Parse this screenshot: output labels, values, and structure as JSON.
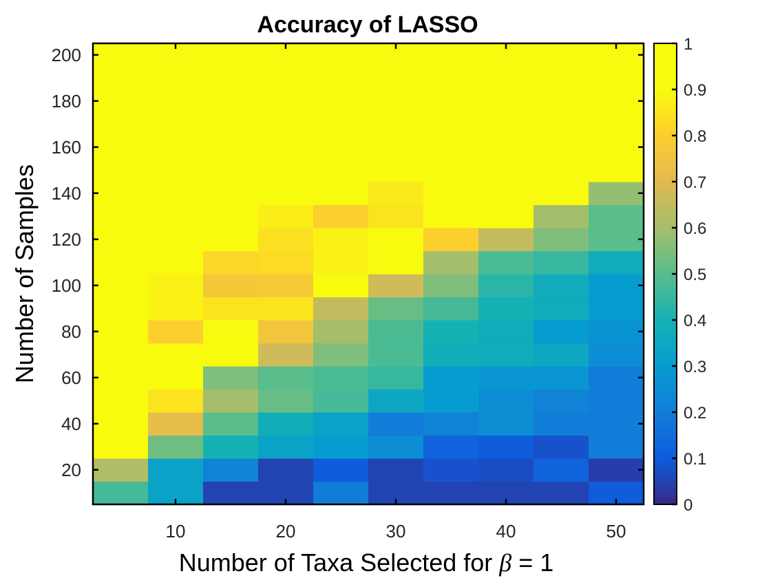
{
  "chart_data": {
    "type": "heatmap",
    "title": "Accuracy of LASSO",
    "xlabel_prefix": "Number of Taxa Selected for ",
    "xlabel_symbol": "β",
    "xlabel_suffix": " = 1",
    "ylabel": "Number of Samples",
    "x": [
      5,
      10,
      15,
      20,
      25,
      30,
      35,
      40,
      45,
      50
    ],
    "y": [
      10,
      20,
      30,
      40,
      50,
      60,
      70,
      80,
      90,
      100,
      110,
      120,
      130,
      140,
      150,
      160,
      170,
      180,
      190,
      200
    ],
    "xlim": [
      2.5,
      52.5
    ],
    "ylim": [
      5,
      205
    ],
    "xticks": [
      10,
      20,
      30,
      40,
      50
    ],
    "yticks": [
      20,
      40,
      60,
      80,
      100,
      120,
      140,
      160,
      180,
      200
    ],
    "colorbar": {
      "ticks": [
        0,
        0.1,
        0.2,
        0.3,
        0.4,
        0.5,
        0.6,
        0.7,
        0.8,
        0.9,
        1
      ],
      "clim": [
        0,
        1
      ],
      "colormap": "parula"
    },
    "values": [
      [
        0.47,
        0.33,
        0.05,
        0.05,
        0.2,
        0.05,
        0.05,
        0.05,
        0.05,
        0.1
      ],
      [
        0.62,
        0.33,
        0.22,
        0.05,
        0.1,
        0.05,
        0.08,
        0.07,
        0.12,
        0.04
      ],
      [
        0.9,
        0.53,
        0.4,
        0.33,
        0.3,
        0.25,
        0.12,
        0.1,
        0.08,
        0.2
      ],
      [
        0.9,
        0.72,
        0.5,
        0.38,
        0.33,
        0.2,
        0.22,
        0.25,
        0.2,
        0.2
      ],
      [
        0.92,
        0.85,
        0.6,
        0.52,
        0.47,
        0.35,
        0.3,
        0.25,
        0.22,
        0.2
      ],
      [
        0.92,
        0.97,
        0.55,
        0.5,
        0.48,
        0.45,
        0.3,
        0.28,
        0.28,
        0.2
      ],
      [
        0.92,
        0.97,
        0.9,
        0.67,
        0.55,
        0.48,
        0.38,
        0.37,
        0.35,
        0.25
      ],
      [
        0.92,
        0.8,
        0.9,
        0.76,
        0.6,
        0.48,
        0.4,
        0.37,
        0.3,
        0.27
      ],
      [
        1.0,
        0.88,
        0.85,
        0.85,
        0.65,
        0.52,
        0.47,
        0.4,
        0.37,
        0.3
      ],
      [
        1.0,
        0.88,
        0.77,
        0.78,
        0.93,
        0.67,
        0.55,
        0.43,
        0.37,
        0.3
      ],
      [
        1.0,
        0.95,
        0.82,
        0.83,
        0.88,
        0.9,
        0.6,
        0.48,
        0.45,
        0.37
      ],
      [
        1.0,
        1.0,
        0.93,
        0.84,
        0.88,
        0.93,
        0.8,
        0.65,
        0.55,
        0.5
      ],
      [
        1.0,
        1.0,
        0.93,
        0.87,
        0.8,
        0.85,
        0.97,
        0.98,
        0.6,
        0.5
      ],
      [
        1.0,
        1.0,
        0.96,
        0.97,
        0.92,
        0.86,
        0.9,
        0.92,
        0.97,
        0.58
      ],
      [
        1.0,
        1.0,
        1.0,
        0.97,
        0.95,
        0.92,
        0.93,
        0.98,
        0.98,
        0.98
      ],
      [
        1.0,
        1.0,
        1.0,
        1.0,
        0.98,
        0.98,
        0.96,
        0.96,
        0.95,
        0.95
      ],
      [
        1.0,
        1.0,
        1.0,
        1.0,
        1.0,
        1.0,
        0.98,
        1.0,
        1.0,
        1.0
      ],
      [
        1.0,
        1.0,
        1.0,
        1.0,
        1.0,
        1.0,
        1.0,
        1.0,
        1.0,
        1.0
      ],
      [
        1.0,
        1.0,
        1.0,
        1.0,
        1.0,
        1.0,
        1.0,
        1.0,
        1.0,
        1.0
      ],
      [
        1.0,
        1.0,
        1.0,
        1.0,
        1.0,
        1.0,
        1.0,
        1.0,
        1.0,
        1.0
      ]
    ]
  }
}
